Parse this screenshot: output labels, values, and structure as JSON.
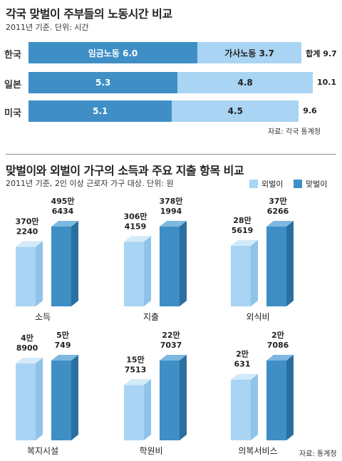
{
  "colors": {
    "dark": "#3f8fc6",
    "light": "#a9d4f3"
  },
  "chart_data": [
    {
      "type": "bar",
      "orientation": "horizontal",
      "stacked": true,
      "title": "각국 맞벌이 주부들의 노동시간 비교",
      "subtitle": "2011년 기준. 단위: 시간",
      "categories": [
        "한국",
        "일본",
        "미국"
      ],
      "series": [
        {
          "name": "임금노동",
          "values": [
            6.0,
            5.3,
            5.1
          ]
        },
        {
          "name": "가사노동",
          "values": [
            3.7,
            4.8,
            4.5
          ]
        }
      ],
      "totals": [
        "9.7",
        "10.1",
        "9.6"
      ],
      "total_prefix": "합계",
      "segment_labels": [
        [
          "임금노동 6.0",
          "가사노동 3.7"
        ],
        [
          "5.3",
          "4.8"
        ],
        [
          "5.1",
          "4.5"
        ]
      ],
      "source": "자료: 각국 통계청"
    },
    {
      "type": "bar",
      "title": "맞벌이와 외벌이 가구의 소득과 주요 지출 항목 비교",
      "subtitle": "2011년 기준, 2인 이상 근로자 가구 대상. 단위: 원",
      "legend": [
        "외벌이",
        "맞벌이"
      ],
      "categories": [
        "소득",
        "지출",
        "외식비",
        "복지시설",
        "학원비",
        "의복서비스"
      ],
      "series": [
        {
          "name": "외벌이",
          "values": [
            3702240,
            3064159,
            285619,
            48900,
            157513,
            20631
          ],
          "labels": [
            [
              "370만",
              "2240"
            ],
            [
              "306만",
              "4159"
            ],
            [
              "28만",
              "5619"
            ],
            [
              "4만",
              "8900"
            ],
            [
              "15만",
              "7513"
            ],
            [
              "2만",
              "631"
            ]
          ]
        },
        {
          "name": "맞벌이",
          "values": [
            4956434,
            3781994,
            376266,
            50749,
            227037,
            27086
          ],
          "labels": [
            [
              "495만",
              "6434"
            ],
            [
              "378만",
              "1994"
            ],
            [
              "37만",
              "6266"
            ],
            [
              "5만",
              "749"
            ],
            [
              "22만",
              "7037"
            ],
            [
              "2만",
              "7086"
            ]
          ]
        }
      ],
      "source": "자료: 통계청"
    }
  ]
}
